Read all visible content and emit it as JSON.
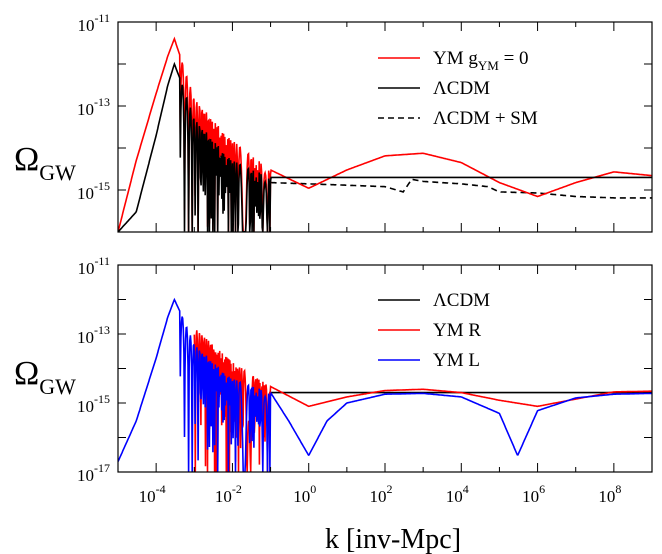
{
  "figure": {
    "xlabel": "k [inv-Mpc]",
    "ylabel_main": "Ω",
    "ylabel_sub": "GW"
  },
  "chart_data": [
    {
      "type": "line",
      "panel": "top",
      "xscale": "log",
      "yscale": "log",
      "xlim": [
        1e-05,
        1000000000.0
      ],
      "ylim": [
        1e-16,
        1e-11
      ],
      "ytick_labels": [
        {
          "base": "10",
          "exp": "-11"
        },
        {
          "base": "10",
          "exp": "-13"
        },
        {
          "base": "10",
          "exp": "-15"
        }
      ],
      "ylabel": "Ω GW",
      "legend_position": "top-right",
      "series": [
        {
          "name": "YM  g",
          "name_sub": "YM",
          "name_suffix": " = 0",
          "color": "#ff0000",
          "dash": "",
          "x": [
            1e-05,
            3e-05,
            0.0001,
            0.0002,
            0.0003,
            0.0005,
            0.001,
            0.01,
            0.1,
            1,
            10,
            100,
            1000,
            10000.0,
            100000.0,
            1000000.0,
            10000000.0,
            100000000.0,
            1000000000.0
          ],
          "y": [
            1e-16,
            5e-15,
            2e-13,
            1.5e-12,
            4e-12,
            1e-12,
            1.5e-13,
            1.5e-14,
            3e-15,
            1.1e-15,
            3e-15,
            6.5e-15,
            7.5e-15,
            4.5e-15,
            1.5e-15,
            7e-16,
            1.5e-15,
            2.7e-15,
            2.2e-15
          ]
        },
        {
          "name": "ΛCDM",
          "color": "#000000",
          "dash": "",
          "x": [
            1e-05,
            3e-05,
            0.0001,
            0.0002,
            0.0003,
            0.0005,
            0.001,
            0.01,
            0.1,
            1000000000.0
          ],
          "y": [
            1e-16,
            3e-16,
            2e-14,
            3e-13,
            1e-12,
            3e-13,
            5e-14,
            5e-15,
            2e-15,
            2e-15
          ]
        },
        {
          "name": "ΛCDM + SM",
          "color": "#000000",
          "dash": "6,4",
          "x": [
            0.1,
            1,
            10,
            100,
            300,
            500,
            1000,
            10000.0,
            50000.0,
            100000.0,
            1000000.0,
            10000000.0,
            100000000.0,
            1000000000.0
          ],
          "y": [
            1.5e-15,
            1.4e-15,
            1.3e-15,
            1.2e-15,
            9e-16,
            1.8e-15,
            1.6e-15,
            1.4e-15,
            1.2e-15,
            9e-16,
            8.5e-16,
            7e-16,
            6.5e-16,
            6.5e-16
          ]
        }
      ]
    },
    {
      "type": "line",
      "panel": "bottom",
      "xscale": "log",
      "yscale": "log",
      "xlim": [
        1e-05,
        1000000000.0
      ],
      "ylim": [
        1e-17,
        1e-11
      ],
      "ytick_labels": [
        {
          "base": "10",
          "exp": "-11"
        },
        {
          "base": "10",
          "exp": "-13"
        },
        {
          "base": "10",
          "exp": "-15"
        },
        {
          "base": "10",
          "exp": "-17"
        }
      ],
      "xtick_labels": [
        {
          "base": "10",
          "exp": "-4"
        },
        {
          "base": "10",
          "exp": "-2"
        },
        {
          "base": "10",
          "exp": "0"
        },
        {
          "base": "10",
          "exp": "2"
        },
        {
          "base": "10",
          "exp": "4"
        },
        {
          "base": "10",
          "exp": "6"
        },
        {
          "base": "10",
          "exp": "8"
        }
      ],
      "ylabel": "Ω GW",
      "xlabel": "k [inv-Mpc]",
      "legend_position": "top-right",
      "series": [
        {
          "name": "ΛCDM",
          "color": "#000000",
          "dash": "",
          "x": [
            0.1,
            1000000000.0
          ],
          "y": [
            2e-15,
            2e-15
          ]
        },
        {
          "name": "YM R",
          "color": "#ff0000",
          "dash": "",
          "x": [
            0.001,
            0.01,
            0.1,
            1,
            10,
            100,
            1000,
            10000.0,
            100000.0,
            1000000.0,
            10000000.0,
            100000000.0,
            1000000000.0
          ],
          "y": [
            1.5e-13,
            1.5e-14,
            3e-15,
            8e-16,
            1.5e-15,
            2.3e-15,
            2.5e-15,
            2e-15,
            1.2e-15,
            8e-16,
            1.3e-15,
            2.1e-15,
            2.2e-15
          ]
        },
        {
          "name": "YM L",
          "color": "#0000ff",
          "dash": "",
          "x": [
            1e-05,
            3e-05,
            0.0001,
            0.0002,
            0.0003,
            0.0005,
            0.001,
            0.01,
            0.1,
            0.3,
            1,
            3,
            10,
            100,
            1000,
            10000.0,
            100000.0,
            300000.0,
            1000000.0,
            10000000.0,
            100000000.0,
            1000000000.0
          ],
          "y": [
            2e-17,
            3e-16,
            2e-14,
            3e-13,
            1e-12,
            3e-13,
            5e-14,
            5e-15,
            2e-15,
            3e-16,
            3e-17,
            3e-16,
            1e-15,
            1.8e-15,
            1.9e-15,
            1.5e-15,
            5e-16,
            3e-17,
            6e-16,
            1.4e-15,
            1.8e-15,
            1.9e-15
          ]
        }
      ]
    }
  ]
}
